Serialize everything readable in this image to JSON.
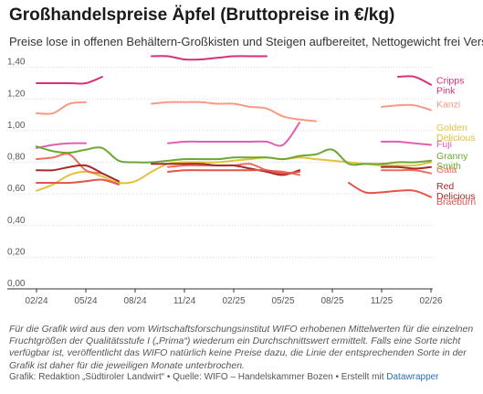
{
  "header": {
    "title": "Großhandelspreise Äpfel (Bruttopreise in €/kg)",
    "subtitle": "Preise lose in offenen Behältern-Großkisten und Steigen aufbereitet, Nettogewicht frei Versand"
  },
  "footer": {
    "note": "Für die Grafik wird aus den vom Wirtschaftsforschungsinstitut WIFO erhobenen Mittelwerten für die einzelnen Fruchtgrößen der Qualitätsstufe I („Prima“) wiederum ein Durchschnittswert ermittelt. Falls eine Sorte nicht verfügbar ist, veröffentlicht das WIFO natürlich keine Preise dazu, die Linie der entsprechenden Sorte in der Grafik ist daher für die jeweiligen Monate unterbrochen.",
    "source_prefix": "Grafik: Redaktion „Südtiroler Landwirt“ • Quelle: WIFO – Handelskammer Bozen • Erstellt mit ",
    "source_link": "Datawrapper"
  },
  "chart_data": {
    "type": "line",
    "x": [
      "02/24",
      "03/24",
      "04/24",
      "05/24",
      "06/24",
      "07/24",
      "08/24",
      "09/24",
      "10/24",
      "11/24",
      "12/24",
      "01/25",
      "02/25",
      "03/25",
      "04/25",
      "05/25",
      "06/25",
      "07/25",
      "08/25",
      "09/25",
      "10/25",
      "11/25",
      "12/25",
      "01/26",
      "02/26"
    ],
    "x_ticks": [
      "02/24",
      "05/24",
      "08/24",
      "11/24",
      "02/25",
      "05/25",
      "08/25",
      "11/25",
      "02/26"
    ],
    "ylim": [
      0,
      1.45
    ],
    "y_ticks": [
      "0,00",
      "0,20",
      "0,40",
      "0,60",
      "0,80",
      "1,00",
      "1,20",
      "1,40"
    ],
    "grid": true,
    "series": [
      {
        "name": "Cripps Pink",
        "color": "#d6317f",
        "values": [
          1.3,
          1.3,
          1.3,
          1.3,
          1.34,
          null,
          null,
          1.47,
          1.47,
          1.45,
          1.45,
          1.46,
          1.47,
          1.47,
          1.47,
          null,
          null,
          null,
          null,
          null,
          null,
          null,
          1.34,
          1.34,
          1.29
        ]
      },
      {
        "name": "Kanzi",
        "color": "#f59b83",
        "values": [
          1.11,
          1.11,
          1.17,
          1.18,
          null,
          null,
          null,
          1.17,
          1.18,
          1.18,
          1.18,
          1.17,
          1.17,
          1.15,
          1.14,
          1.09,
          1.07,
          1.06,
          null,
          null,
          null,
          1.15,
          1.16,
          1.16,
          1.13
        ]
      },
      {
        "name": "Golden Delicious",
        "color": "#e2c13e",
        "values": [
          0.62,
          0.66,
          0.72,
          0.74,
          0.71,
          0.67,
          0.68,
          0.74,
          0.79,
          0.8,
          0.8,
          0.8,
          0.81,
          0.82,
          0.83,
          0.82,
          0.83,
          0.82,
          0.81,
          0.8,
          0.79,
          0.78,
          0.78,
          0.78,
          0.8
        ]
      },
      {
        "name": "Fuji",
        "color": "#e15fb2",
        "values": [
          0.89,
          0.91,
          0.92,
          0.92,
          null,
          null,
          null,
          null,
          0.92,
          0.93,
          0.93,
          0.93,
          0.93,
          0.93,
          0.93,
          0.91,
          1.05,
          null,
          null,
          null,
          null,
          0.93,
          0.93,
          0.92,
          0.91
        ]
      },
      {
        "name": "Granny Smith",
        "color": "#6aa832",
        "values": [
          0.9,
          0.87,
          0.86,
          0.88,
          0.89,
          0.81,
          0.8,
          0.8,
          0.81,
          0.82,
          0.82,
          0.82,
          0.83,
          0.83,
          0.83,
          0.82,
          0.84,
          0.85,
          0.88,
          0.79,
          0.79,
          0.79,
          0.8,
          0.8,
          0.81
        ]
      },
      {
        "name": "Gala",
        "color": "#ef6d5b",
        "values": [
          0.82,
          0.83,
          0.85,
          0.75,
          0.73,
          null,
          null,
          null,
          0.77,
          0.78,
          0.78,
          0.78,
          0.78,
          0.79,
          0.75,
          0.74,
          0.72,
          null,
          null,
          null,
          null,
          0.75,
          0.75,
          0.75,
          0.73
        ]
      },
      {
        "name": "Red Delicious",
        "color": "#a72a28",
        "values": [
          0.75,
          0.75,
          0.77,
          0.78,
          0.73,
          0.68,
          null,
          0.79,
          0.79,
          0.79,
          0.79,
          0.78,
          0.78,
          0.76,
          0.74,
          0.72,
          0.75,
          null,
          null,
          null,
          null,
          0.77,
          0.77,
          0.76,
          0.77
        ]
      },
      {
        "name": "Braeburn",
        "color": "#e5544a",
        "values": [
          0.67,
          0.67,
          0.67,
          0.68,
          0.69,
          0.66,
          null,
          null,
          0.74,
          0.75,
          0.75,
          0.75,
          0.75,
          0.75,
          0.75,
          0.73,
          0.74,
          null,
          null,
          0.67,
          0.61,
          0.61,
          0.62,
          0.62,
          0.58
        ]
      }
    ]
  }
}
